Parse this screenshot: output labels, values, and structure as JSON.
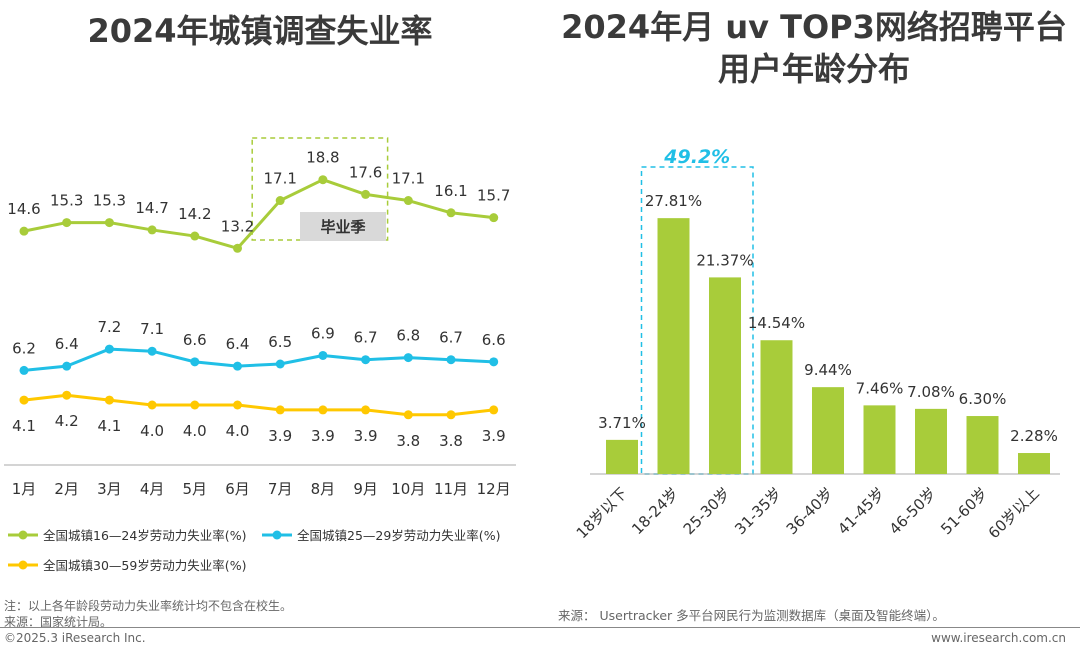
{
  "left_title": "2024年城镇调查失业率",
  "right_title_line1": "2024年月 uv TOP3网络招聘平台",
  "right_title_line2": "用户年龄分布",
  "graduation_label": "毕业季",
  "chart_data": [
    {
      "type": "line",
      "title": "2024年城镇调查失业率",
      "categories": [
        "1月",
        "2月",
        "3月",
        "4月",
        "5月",
        "6月",
        "7月",
        "8月",
        "9月",
        "10月",
        "11月",
        "12月"
      ],
      "series": [
        {
          "name": "全国城镇16—24岁劳动力失业率(%)",
          "color": "#a8cc3a",
          "values": [
            14.6,
            15.3,
            15.3,
            14.7,
            14.2,
            13.2,
            17.1,
            18.8,
            17.6,
            17.1,
            16.1,
            15.7
          ]
        },
        {
          "name": "全国城镇25—29岁劳动力失业率(%)",
          "color": "#20bfe6",
          "values": [
            6.2,
            6.4,
            7.2,
            7.1,
            6.6,
            6.4,
            6.5,
            6.9,
            6.7,
            6.8,
            6.7,
            6.6
          ]
        },
        {
          "name": "全国城镇30—59岁劳动力失业率(%)",
          "color": "#ffc800",
          "values": [
            4.1,
            4.2,
            4.1,
            4.0,
            4.0,
            4.0,
            3.9,
            3.9,
            3.9,
            3.8,
            3.8,
            3.9
          ]
        }
      ],
      "highlight": {
        "label": "毕业季",
        "months": [
          "7月",
          "8月",
          "9月"
        ]
      }
    },
    {
      "type": "bar",
      "title": "2024年月 uv TOP3网络招聘平台用户年龄分布",
      "categories": [
        "18岁以下",
        "18-24岁",
        "25-30岁",
        "31-35岁",
        "36-40岁",
        "41-45岁",
        "46-50岁",
        "51-60岁",
        "60岁以上"
      ],
      "values": [
        3.71,
        27.81,
        21.37,
        14.54,
        9.44,
        7.46,
        7.08,
        6.3,
        2.28
      ],
      "value_labels": [
        "3.71%",
        "27.81%",
        "21.37%",
        "14.54%",
        "9.44%",
        "7.46%",
        "7.08%",
        "6.30%",
        "2.28%"
      ],
      "color": "#a8cc3a",
      "highlight": {
        "label": "49.2%",
        "categories": [
          "18-24岁",
          "25-30岁"
        ]
      }
    }
  ],
  "notes": {
    "note_line": "注：以上各年龄段劳动力失业率统计均不包含在校生。",
    "source_left": "来源：国家统计局。",
    "source_right": "来源： Usertracker 多平台网民行为监测数据库（桌面及智能终端）。",
    "copyright": "©2025.3 iResearch Inc.",
    "website": "www.iresearch.com.cn"
  }
}
